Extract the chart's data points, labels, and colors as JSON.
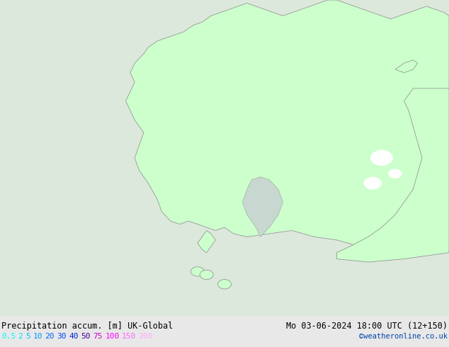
{
  "title_left": "Precipitation accum. [m] UK-Global",
  "title_right": "Mo 03-06-2024 18:00 UTC (12+150)",
  "credit": "©weatheronline.co.uk",
  "legend_labels": [
    "0.5",
    "2",
    "5",
    "10",
    "20",
    "30",
    "40",
    "50",
    "75",
    "100",
    "150",
    "200"
  ],
  "legend_colors": [
    "#00ffff",
    "#00ddff",
    "#00bbff",
    "#0099ff",
    "#0066ff",
    "#0044ff",
    "#0022cc",
    "#440099",
    "#cc00cc",
    "#ff00ff",
    "#ff66ff",
    "#ffaaff"
  ],
  "bg_color": "#e8e8e8",
  "map_bg": "#e8e8e8",
  "land_color": "#ccffcc",
  "border_color": "#888888",
  "figsize": [
    6.34,
    4.9
  ],
  "dpi": 100
}
